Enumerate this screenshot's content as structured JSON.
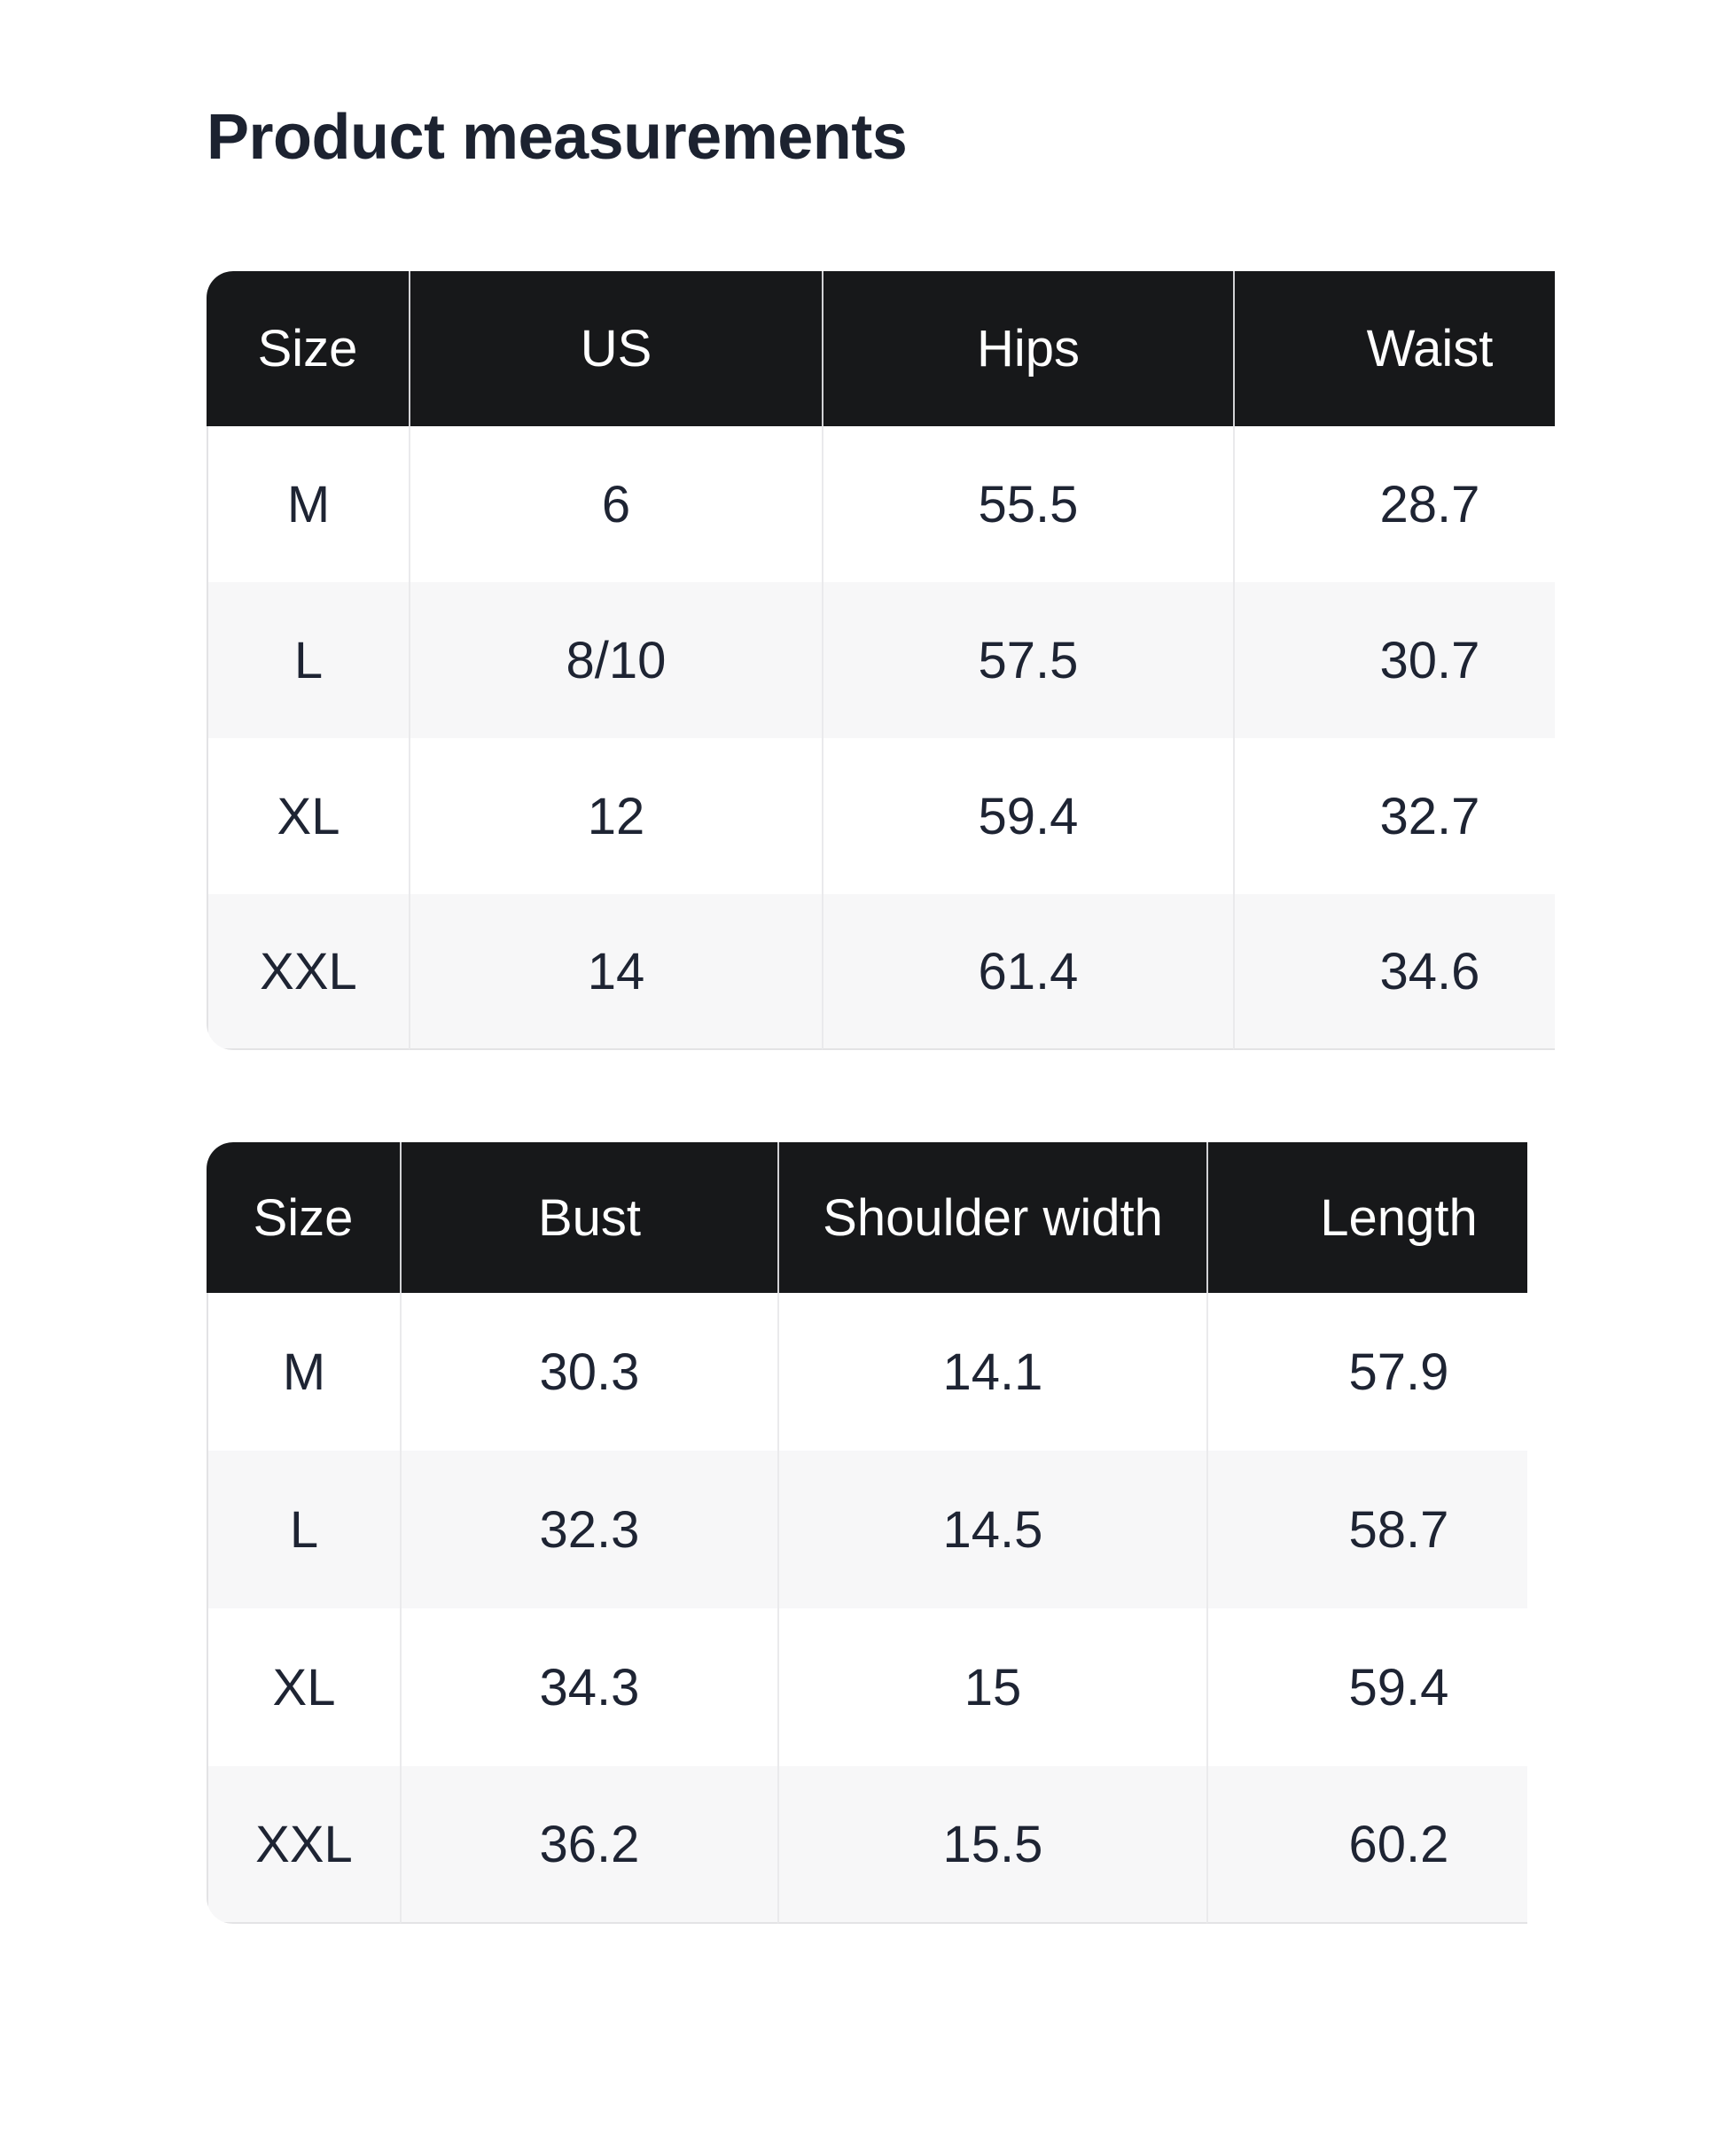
{
  "page": {
    "title": "Product measurements"
  },
  "colors": {
    "header_bg": "#17181a",
    "header_text": "#ffffff",
    "body_text": "#1e2433",
    "row_alt_bg": "#f7f7f8",
    "divider": "#e3e3e5",
    "title_text": "#1c2230"
  },
  "tables": [
    {
      "columns": [
        "Size",
        "US",
        "Hips",
        "Waist"
      ],
      "rows": [
        [
          "M",
          "6",
          "55.5",
          "28.7"
        ],
        [
          "L",
          "8/10",
          "57.5",
          "30.7"
        ],
        [
          "XL",
          "12",
          "59.4",
          "32.7"
        ],
        [
          "XXL",
          "14",
          "61.4",
          "34.6"
        ]
      ]
    },
    {
      "columns": [
        "Size",
        "Bust",
        "Shoulder width",
        "Length"
      ],
      "rows": [
        [
          "M",
          "30.3",
          "14.1",
          "57.9"
        ],
        [
          "L",
          "32.3",
          "14.5",
          "58.7"
        ],
        [
          "XL",
          "34.3",
          "15",
          "59.4"
        ],
        [
          "XXL",
          "36.2",
          "15.5",
          "60.2"
        ]
      ]
    }
  ]
}
